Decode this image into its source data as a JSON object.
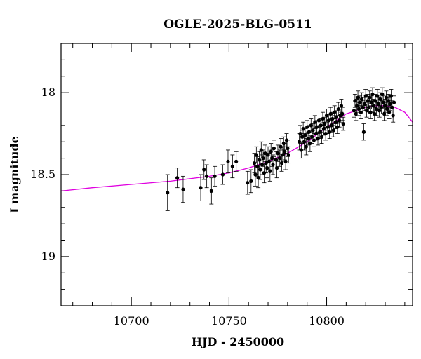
{
  "chart_data": {
    "type": "scatter",
    "title": "OGLE-2025-BLG-0511",
    "xlabel": "HJD - 2450000",
    "ylabel": "I magnitude",
    "xlim": [
      10664,
      10844
    ],
    "ylim": [
      19.3,
      17.7
    ],
    "y_inverted": true,
    "x_ticks": [
      10700,
      10750,
      10800
    ],
    "y_ticks": [
      18,
      18.5,
      19
    ],
    "x_minor_step": 10,
    "y_minor_step": 0.1,
    "grid": false,
    "colors": {
      "points": "#000000",
      "model": "#e000e0",
      "frame": "#000000"
    },
    "series": [
      {
        "kind": "points_with_errorbars",
        "points": [
          [
            10718.5,
            18.61,
            0.11
          ],
          [
            10723.5,
            18.52,
            0.06
          ],
          [
            10726.5,
            18.59,
            0.08
          ],
          [
            10735.5,
            18.58,
            0.08
          ],
          [
            10737.2,
            18.47,
            0.06
          ],
          [
            10738.6,
            18.51,
            0.07
          ],
          [
            10741.0,
            18.6,
            0.08
          ],
          [
            10742.7,
            18.51,
            0.06
          ],
          [
            10746.8,
            18.5,
            0.06
          ],
          [
            10749.5,
            18.42,
            0.07
          ],
          [
            10751.8,
            18.45,
            0.07
          ],
          [
            10753.7,
            18.42,
            0.06
          ],
          [
            10759.5,
            18.55,
            0.07
          ],
          [
            10761.3,
            18.54,
            0.07
          ],
          [
            10763.0,
            18.43,
            0.06
          ],
          [
            10763.5,
            18.5,
            0.07
          ],
          [
            10764.0,
            18.38,
            0.05
          ],
          [
            10764.5,
            18.45,
            0.06
          ],
          [
            10765.0,
            18.52,
            0.06
          ],
          [
            10765.5,
            18.41,
            0.05
          ],
          [
            10766.0,
            18.47,
            0.06
          ],
          [
            10766.5,
            18.35,
            0.05
          ],
          [
            10767.0,
            18.44,
            0.06
          ],
          [
            10767.5,
            18.4,
            0.05
          ],
          [
            10768.0,
            18.49,
            0.06
          ],
          [
            10768.5,
            18.37,
            0.05
          ],
          [
            10769.0,
            18.43,
            0.06
          ],
          [
            10769.5,
            18.46,
            0.06
          ],
          [
            10770.0,
            18.38,
            0.05
          ],
          [
            10770.5,
            18.42,
            0.05
          ],
          [
            10771.0,
            18.48,
            0.06
          ],
          [
            10771.5,
            18.36,
            0.05
          ],
          [
            10772.0,
            18.4,
            0.05
          ],
          [
            10772.5,
            18.44,
            0.06
          ],
          [
            10773.0,
            18.34,
            0.05
          ],
          [
            10774.0,
            18.41,
            0.05
          ],
          [
            10774.5,
            18.46,
            0.06
          ],
          [
            10775.0,
            18.37,
            0.05
          ],
          [
            10776.0,
            18.4,
            0.05
          ],
          [
            10776.5,
            18.33,
            0.05
          ],
          [
            10777.0,
            18.43,
            0.05
          ],
          [
            10777.5,
            18.38,
            0.05
          ],
          [
            10778.0,
            18.31,
            0.04
          ],
          [
            10778.5,
            18.36,
            0.05
          ],
          [
            10779.0,
            18.42,
            0.05
          ],
          [
            10779.5,
            18.29,
            0.04
          ],
          [
            10780.0,
            18.34,
            0.05
          ],
          [
            10780.5,
            18.38,
            0.05
          ],
          [
            10786.0,
            18.3,
            0.05
          ],
          [
            10786.5,
            18.25,
            0.05
          ],
          [
            10787.0,
            18.35,
            0.05
          ],
          [
            10787.5,
            18.27,
            0.04
          ],
          [
            10788.0,
            18.22,
            0.04
          ],
          [
            10788.5,
            18.3,
            0.05
          ],
          [
            10789.0,
            18.26,
            0.04
          ],
          [
            10789.5,
            18.33,
            0.05
          ],
          [
            10790.0,
            18.21,
            0.04
          ],
          [
            10790.5,
            18.28,
            0.04
          ],
          [
            10791.0,
            18.24,
            0.04
          ],
          [
            10791.5,
            18.31,
            0.05
          ],
          [
            10792.0,
            18.2,
            0.04
          ],
          [
            10792.5,
            18.27,
            0.04
          ],
          [
            10793.0,
            18.23,
            0.04
          ],
          [
            10793.5,
            18.29,
            0.04
          ],
          [
            10794.0,
            18.18,
            0.04
          ],
          [
            10794.5,
            18.25,
            0.04
          ],
          [
            10795.0,
            18.21,
            0.04
          ],
          [
            10795.5,
            18.28,
            0.04
          ],
          [
            10796.0,
            18.17,
            0.04
          ],
          [
            10796.5,
            18.24,
            0.04
          ],
          [
            10797.0,
            18.2,
            0.04
          ],
          [
            10797.5,
            18.27,
            0.04
          ],
          [
            10798.0,
            18.16,
            0.04
          ],
          [
            10798.5,
            18.22,
            0.04
          ],
          [
            10799.0,
            18.19,
            0.04
          ],
          [
            10799.5,
            18.25,
            0.04
          ],
          [
            10800.0,
            18.14,
            0.04
          ],
          [
            10800.5,
            18.21,
            0.04
          ],
          [
            10801.0,
            18.17,
            0.04
          ],
          [
            10801.5,
            18.24,
            0.04
          ],
          [
            10802.0,
            18.13,
            0.04
          ],
          [
            10802.5,
            18.2,
            0.04
          ],
          [
            10803.0,
            18.16,
            0.04
          ],
          [
            10803.5,
            18.23,
            0.04
          ],
          [
            10804.0,
            18.12,
            0.04
          ],
          [
            10804.5,
            18.18,
            0.04
          ],
          [
            10805.0,
            18.15,
            0.04
          ],
          [
            10805.5,
            18.21,
            0.04
          ],
          [
            10806.0,
            18.1,
            0.04
          ],
          [
            10806.5,
            18.17,
            0.04
          ],
          [
            10807.0,
            18.14,
            0.04
          ],
          [
            10807.5,
            18.08,
            0.04
          ],
          [
            10808.0,
            18.13,
            0.04
          ],
          [
            10808.5,
            18.19,
            0.04
          ],
          [
            10814.0,
            18.11,
            0.04
          ],
          [
            10814.5,
            18.05,
            0.04
          ],
          [
            10815.0,
            18.13,
            0.04
          ],
          [
            10815.5,
            18.08,
            0.04
          ],
          [
            10816.0,
            18.03,
            0.04
          ],
          [
            10816.5,
            18.1,
            0.04
          ],
          [
            10817.0,
            18.06,
            0.04
          ],
          [
            10817.5,
            18.12,
            0.04
          ],
          [
            10818.0,
            18.04,
            0.04
          ],
          [
            10818.5,
            18.09,
            0.04
          ],
          [
            10819.0,
            18.24,
            0.05
          ],
          [
            10819.5,
            18.07,
            0.04
          ],
          [
            10820.0,
            18.02,
            0.04
          ],
          [
            10820.5,
            18.11,
            0.04
          ],
          [
            10821.0,
            18.05,
            0.04
          ],
          [
            10821.5,
            18.09,
            0.04
          ],
          [
            10822.0,
            18.03,
            0.04
          ],
          [
            10822.5,
            18.12,
            0.04
          ],
          [
            10823.0,
            18.06,
            0.04
          ],
          [
            10823.5,
            18.01,
            0.04
          ],
          [
            10824.0,
            18.08,
            0.04
          ],
          [
            10824.5,
            18.13,
            0.04
          ],
          [
            10825.0,
            18.05,
            0.04
          ],
          [
            10825.5,
            18.1,
            0.04
          ],
          [
            10826.0,
            18.02,
            0.04
          ],
          [
            10826.5,
            18.07,
            0.04
          ],
          [
            10827.0,
            18.11,
            0.04
          ],
          [
            10827.5,
            18.04,
            0.04
          ],
          [
            10828.0,
            18.09,
            0.04
          ],
          [
            10828.5,
            18.01,
            0.04
          ],
          [
            10829.0,
            18.06,
            0.04
          ],
          [
            10829.5,
            18.13,
            0.04
          ],
          [
            10830.0,
            18.08,
            0.04
          ],
          [
            10830.5,
            18.03,
            0.04
          ],
          [
            10831.0,
            18.1,
            0.04
          ],
          [
            10831.5,
            18.05,
            0.04
          ],
          [
            10832.0,
            18.12,
            0.04
          ],
          [
            10832.5,
            18.07,
            0.04
          ],
          [
            10833.0,
            18.02,
            0.04
          ],
          [
            10833.5,
            18.09,
            0.04
          ],
          [
            10834.0,
            18.14,
            0.04
          ],
          [
            10834.5,
            18.06,
            0.04
          ]
        ]
      },
      {
        "kind": "model_curve",
        "x": [
          10664,
          10680,
          10700,
          10720,
          10740,
          10750,
          10760,
          10770,
          10780,
          10790,
          10800,
          10810,
          10815,
          10820,
          10825,
          10830,
          10835,
          10840,
          10844
        ],
        "y": [
          18.6,
          18.58,
          18.56,
          18.54,
          18.51,
          18.49,
          18.46,
          18.42,
          18.37,
          18.3,
          18.21,
          18.13,
          18.11,
          18.09,
          18.08,
          18.08,
          18.09,
          18.12,
          18.18
        ]
      }
    ]
  }
}
